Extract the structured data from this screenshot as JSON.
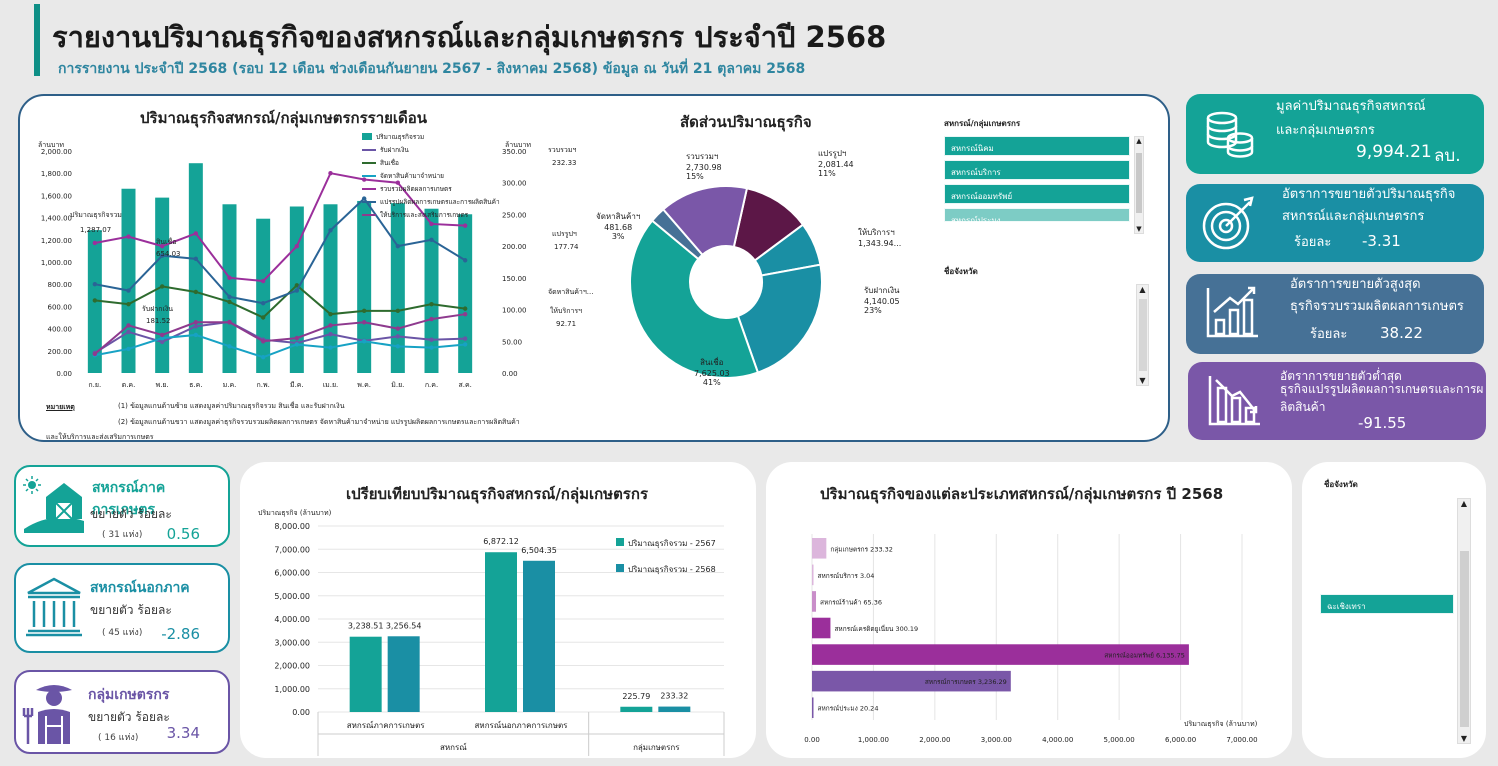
{
  "header": {
    "title": "รายงานปริมาณธุรกิจของสหกรณ์และกลุ่มเกษตรกร ประจำปี 2568",
    "subtitle": "การรายงาน ประจำปี 2568 (รอบ 12 เดือน ช่วงเดือนกันยายน 2567 - สิงหาคม 2568) ข้อมูล ณ วันที่ 21 ตุลาคม 2568"
  },
  "monthly": {
    "title": "ปริมาณธุรกิจสหกรณ์/กลุ่มเกษตรกรรายเดือน",
    "left_unit": "ล้านบาท",
    "right_unit": "ล้านบาท",
    "note_label": "หมายเหตุ",
    "note1": "(1) ข้อมูลแกนด้านซ้าย แสดงมูลค่าปริมาณธุรกิจรวม สินเชื่อ และรับฝากเงิน",
    "note2": "(2) ข้อมูลแกนด้านขวา แสดงมูลค่าธุรกิจรวบรวมผลิตผลการเกษตร จัดหาสินค้ามาจำหน่าย แปรรูปผลิตผลการเกษตรและการผลิตสินค้า",
    "note3": "และให้บริการและส่งเสริมการเกษตร",
    "left_labels": [
      {
        "text": "ปริมาณธุรกิจรวม"
      },
      {
        "text": "1,287.07"
      },
      {
        "text": "สินเชื่อ"
      },
      {
        "text": "654.03"
      },
      {
        "text": "รับฝากเงิน"
      },
      {
        "text": "181.52"
      }
    ],
    "right_labels": [
      {
        "text": "รวบรวมฯ"
      },
      {
        "text": "232.33"
      },
      {
        "text": "แปรรูปฯ"
      },
      {
        "text": "177.74"
      },
      {
        "text": "จัดหาสินค้าฯ..."
      },
      {
        "text": "ให้บริการฯ"
      },
      {
        "text": "92.71"
      }
    ]
  },
  "share": {
    "title": "สัดส่วนปริมาณธุรกิจ",
    "labels": [
      {
        "name": "แปรรูปฯ",
        "value": "2,081.44",
        "pct": "11%"
      },
      {
        "name": "ให้บริการฯ",
        "value": "1,343.94...",
        "pct": ""
      },
      {
        "name": "รับฝากเงิน",
        "value": "4,140.05",
        "pct": "23%"
      },
      {
        "name": "สินเชื่อ",
        "value": "7,625.03",
        "pct": "41%"
      },
      {
        "name": "จัดหาสินค้าฯ",
        "value": "481.68",
        "pct": "3%"
      },
      {
        "name": "รวบรวมฯ",
        "value": "2,730.98",
        "pct": "15%"
      }
    ]
  },
  "slicer1": {
    "title": "สหกรณ์/กลุ่มเกษตรกร",
    "items": [
      "สหกรณ์นิคม",
      "สหกรณ์บริการ",
      "สหกรณ์ออมทรัพย์",
      "สหกรณ์ประมง"
    ]
  },
  "slicer2": {
    "title": "ชื่อจังหวัด"
  },
  "slicer3": {
    "title": "ชื่อจังหวัด",
    "selected": "ฉะเชิงเทรา"
  },
  "kpis": [
    {
      "line1": "มูลค่าปริมาณธุรกิจสหกรณ์",
      "line2": "และกลุ่มเกษตรกร",
      "value": "9,994.21",
      "unit": "ลบ.",
      "color": "#14a397",
      "icon": "coins-icon"
    },
    {
      "line1": "อัตราการขยายตัวปริมาณธุรกิจ",
      "line2": "สหกรณ์และกลุ่มเกษตรกร",
      "prefix": "ร้อยละ",
      "value": "-3.31",
      "color": "#1a8fa4",
      "icon": "target-icon"
    },
    {
      "line1": "อัตราการขยายตัวสูงสุด",
      "line2": "ธุรกิจรวบรวมผลิตผลการเกษตร",
      "prefix": "ร้อยละ",
      "value": "38.22",
      "color": "#467196",
      "icon": "growth-chart-icon"
    },
    {
      "line1": "อัตราการขยายตัวต่ำสุด",
      "line2": "ธุรกิจแปรรูปผลิตผลการเกษตรและการผ",
      "line3": "ลิตสินค้า",
      "value": "-91.55",
      "color": "#7a57a8",
      "icon": "decline-chart-icon"
    }
  ],
  "cards": [
    {
      "title": "สหกรณ์ภาคการเกษตร",
      "sub": "ขยายตัว ร้อยละ",
      "count": "( 31 แห่ง)",
      "value": "0.56",
      "color": "#14a397",
      "icon": "barn-icon"
    },
    {
      "title": "สหกรณ์นอกภาค",
      "sub": "ขยายตัว ร้อยละ",
      "count": "( 45 แห่ง)",
      "value": "-2.86",
      "color": "#1a8fa4",
      "icon": "bank-icon"
    },
    {
      "title": "กลุ่มเกษตรกร",
      "sub": "ขยายตัว ร้อยละ",
      "count": "( 16 แห่ง)",
      "value": "3.34",
      "color": "#6a55a6",
      "icon": "farmer-icon"
    }
  ],
  "compare": {
    "title": "เปรียบเทียบปริมาณธุรกิจสหกรณ์/กลุ่มเกษตรกร",
    "ylabel": "ปริมาณธุรกิจ (ล้านบาท)",
    "group_top": "สหกรณ์",
    "group_right": "กลุ่มเกษตรกร"
  },
  "types": {
    "title": "ปริมาณธุรกิจของแต่ละประเภทสหกรณ์/กลุ่มเกษตรกร ปี 2568",
    "xlabel": "ปริมาณธุรกิจ (ล้านบาท)"
  },
  "chart_data": [
    {
      "type": "bar",
      "title": "ปริมาณธุรกิจสหกรณ์/กลุ่มเกษตรกรรายเดือน",
      "categories": [
        "ก.ย.",
        "ต.ค.",
        "พ.ย.",
        "ธ.ค.",
        "ม.ค.",
        "ก.พ.",
        "มี.ค.",
        "เม.ย.",
        "พ.ค.",
        "มิ.ย.",
        "ก.ค.",
        "ส.ค."
      ],
      "ylim": [
        0,
        2000
      ],
      "y2lim": [
        0,
        350
      ],
      "yticks": [
        "0.00",
        "200.00",
        "400.00",
        "600.00",
        "800.00",
        "1,000.00",
        "1,200.00",
        "1,400.00",
        "1,600.00",
        "1,800.00",
        "2,000.00"
      ],
      "y2ticks": [
        "0.00",
        "50.00",
        "100.00",
        "150.00",
        "200.00",
        "250.00",
        "300.00",
        "350.00"
      ],
      "legend": "top-right",
      "series": [
        {
          "name": "ปริมาณธุรกิจรวม",
          "axis": "left",
          "kind": "bar",
          "color": "#14a397",
          "values": [
            1287.07,
            1660,
            1580,
            1890,
            1520,
            1390,
            1500,
            1520,
            1550,
            1530,
            1480,
            1430
          ]
        },
        {
          "name": "รับฝากเงิน",
          "axis": "left",
          "kind": "line",
          "color": "#6a55a6",
          "values": [
            181.52,
            370,
            280,
            420,
            460,
            300,
            270,
            350,
            290,
            330,
            300,
            310
          ]
        },
        {
          "name": "สินเชื่อ",
          "axis": "left",
          "kind": "line",
          "color": "#2e6b2e",
          "values": [
            654.03,
            620,
            780,
            730,
            640,
            500,
            790,
            530,
            560,
            560,
            620,
            580
          ]
        },
        {
          "name": "จัดหาสินค้ามาจำหน่าย",
          "axis": "right",
          "kind": "line",
          "color": "#17a2c4",
          "values": [
            28,
            38,
            55,
            60,
            42,
            25,
            45,
            40,
            50,
            42,
            40,
            45
          ]
        },
        {
          "name": "รวบรวมผลิตผลการเกษตร",
          "axis": "right",
          "kind": "line",
          "color": "#9b2f9b",
          "values": [
            205,
            215,
            200,
            220,
            150,
            145,
            200,
            315,
            305,
            300,
            235,
            232.33
          ]
        },
        {
          "name": "แปรรูปผลิตผลการเกษตรและการผลิตสินค้า",
          "axis": "right",
          "kind": "line",
          "color": "#2a6496",
          "values": [
            140,
            130,
            185,
            180,
            120,
            110,
            130,
            225,
            275,
            200,
            210,
            177.74
          ]
        },
        {
          "name": "ให้บริการและส่งเสริมการเกษตร",
          "axis": "right",
          "kind": "line",
          "color": "#8e3a8e",
          "values": [
            30,
            75,
            60,
            80,
            80,
            50,
            55,
            75,
            80,
            70,
            85,
            92.71
          ]
        }
      ]
    },
    {
      "type": "pie",
      "title": "สัดส่วนปริมาณธุรกิจ",
      "categories": [
        "แปรรูปฯ",
        "ให้บริการฯ",
        "รับฝากเงิน",
        "สินเชื่อ",
        "จัดหาสินค้าฯ",
        "รวบรวมฯ"
      ],
      "values": [
        2081.44,
        1343.94,
        4140.05,
        7625.03,
        481.68,
        2730.98
      ],
      "colors": [
        "#5c1747",
        "#1a8fa4",
        "#1a8fa4",
        "#14a397",
        "#467196",
        "#7a57a8"
      ]
    },
    {
      "type": "bar",
      "title": "เปรียบเทียบปริมาณธุรกิจสหกรณ์/กลุ่มเกษตรกร",
      "categories": [
        "สหกรณ์ภาคการเกษตร",
        "สหกรณ์นอกภาคการเกษตร",
        ""
      ],
      "ylim": [
        0,
        8000
      ],
      "yticks": [
        "0.00",
        "1,000.00",
        "2,000.00",
        "3,000.00",
        "4,000.00",
        "5,000.00",
        "6,000.00",
        "7,000.00",
        "8,000.00"
      ],
      "legend": "top-right",
      "series": [
        {
          "name": "ปริมาณธุรกิจรวม - 2567",
          "color": "#14a397",
          "values": [
            3238.51,
            6872.12,
            225.79
          ],
          "labels": [
            "3,238.51",
            "6,872.12",
            "225.79"
          ]
        },
        {
          "name": "ปริมาณธุรกิจรวม - 2568",
          "color": "#1a8fa4",
          "values": [
            3256.54,
            6504.35,
            233.32
          ],
          "labels": [
            "3,256.54",
            "6,504.35",
            "233.32"
          ]
        }
      ]
    },
    {
      "type": "bar",
      "orientation": "horizontal",
      "title": "ปริมาณธุรกิจของแต่ละประเภทสหกรณ์/กลุ่มเกษตรกร ปี 2568",
      "xlim": [
        0,
        7000
      ],
      "xticks": [
        "0.00",
        "1,000.00",
        "2,000.00",
        "3,000.00",
        "4,000.00",
        "5,000.00",
        "6,000.00",
        "7,000.00"
      ],
      "categories": [
        "กลุ่มเกษตรกร",
        "สหกรณ์บริการ",
        "สหกรณ์ร้านค้า",
        "สหกรณ์เครดิตยูเนี่ยน",
        "สหกรณ์ออมทรัพย์",
        "สหกรณ์การเกษตร",
        "สหกรณ์ประมง"
      ],
      "values": [
        233.32,
        3.04,
        65.36,
        300.19,
        6135.75,
        3236.29,
        20.24
      ],
      "labels": [
        "กลุ่มเกษตรกร 233.32",
        "สหกรณ์บริการ 3.04",
        "สหกรณ์ร้านค้า 65.36",
        "สหกรณ์เครดิตยูเนี่ยน 300.19",
        "สหกรณ์ออมทรัพย์ 6,135.75",
        "สหกรณ์การเกษตร 3,236.29",
        "สหกรณ์ประมง 20.24"
      ],
      "colors": [
        "#dcb6dc",
        "#dcb6dc",
        "#c98ec9",
        "#9b2f9b",
        "#9b2f9b",
        "#7a57a8",
        "#7a57a8"
      ]
    }
  ]
}
